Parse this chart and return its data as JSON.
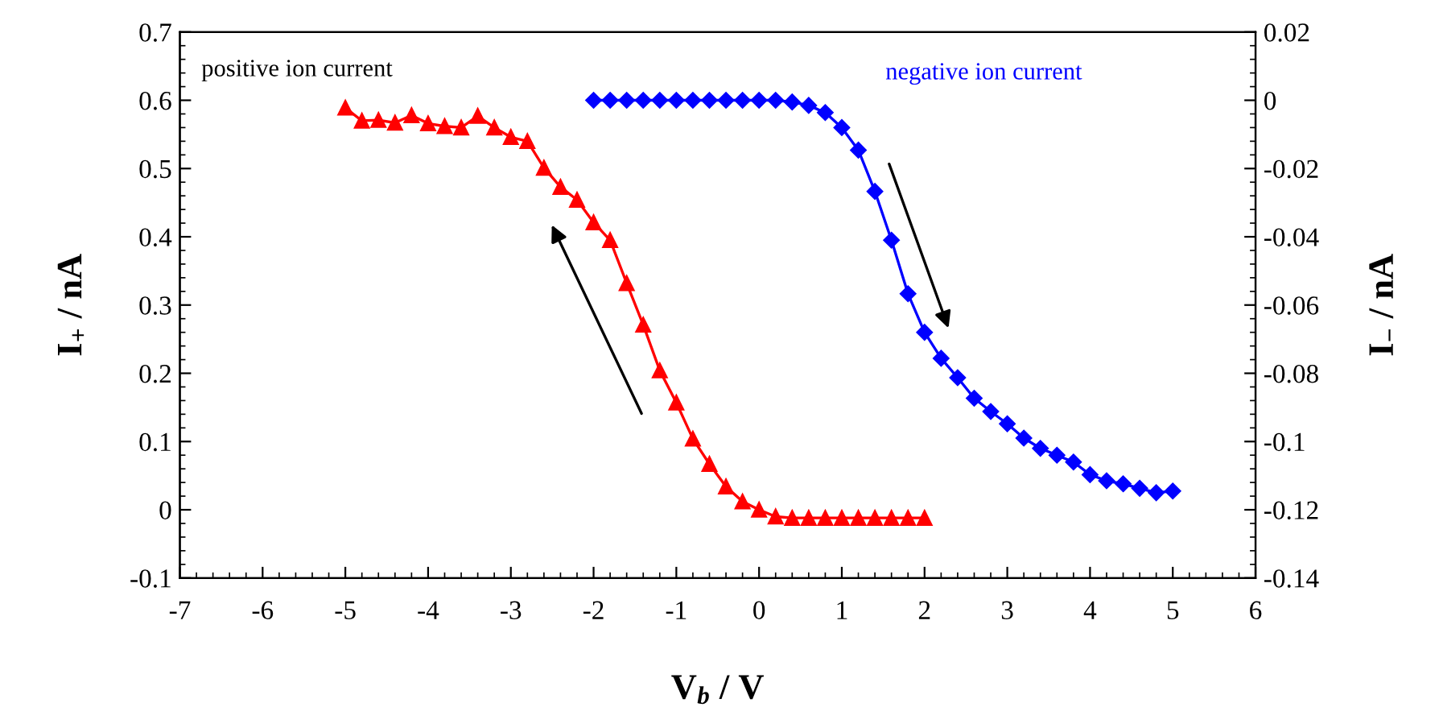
{
  "chart_data": {
    "type": "line",
    "xlabel": "V$_{b}$ / V",
    "ylabel": "I$_{+}$ / nA",
    "y2label": "I$_{−}$ / nA",
    "xlim": [
      -7,
      6
    ],
    "xticks": [
      -7,
      -6,
      -5,
      -4,
      -3,
      -2,
      -1,
      0,
      1,
      2,
      3,
      4,
      5,
      6
    ],
    "ylim": [
      -0.1,
      0.7
    ],
    "yticks": [
      -0.1,
      0,
      0.1,
      0.2,
      0.3,
      0.4,
      0.5,
      0.6,
      0.7
    ],
    "y2lim": [
      -0.14,
      0.02
    ],
    "y2ticks": [
      -0.14,
      -0.12,
      -0.1,
      -0.08,
      -0.06,
      -0.04,
      -0.02,
      0,
      0.02
    ],
    "grid": false,
    "legend": false,
    "line_style": "solid",
    "series": [
      {
        "name": "positive ion current",
        "color": "#ff0000",
        "marker": "triangle",
        "x": [
          -5.0,
          -4.8,
          -4.6,
          -4.4,
          -4.2,
          -4.0,
          -3.8,
          -3.6,
          -3.4,
          -3.2,
          -3.0,
          -2.8,
          -2.6,
          -2.4,
          -2.2,
          -2.0,
          -1.8,
          -1.6,
          -1.4,
          -1.2,
          -1.0,
          -0.8,
          -0.6,
          -0.4,
          -0.2,
          0.0,
          0.2,
          0.4,
          0.6,
          0.8,
          1.0,
          1.2,
          1.4,
          1.6,
          1.8,
          2.0
        ],
        "values": [
          0.589,
          0.57,
          0.571,
          0.567,
          0.578,
          0.566,
          0.562,
          0.56,
          0.577,
          0.56,
          0.546,
          0.54,
          0.501,
          0.473,
          0.454,
          0.421,
          0.395,
          0.332,
          0.271,
          0.204,
          0.157,
          0.104,
          0.067,
          0.034,
          0.012,
          0.0,
          -0.01,
          -0.012,
          -0.012,
          -0.012,
          -0.012,
          -0.012,
          -0.012,
          -0.012,
          -0.012,
          -0.012
        ]
      },
      {
        "name": "negative ion current",
        "color": "#0000ff",
        "marker": "diamond",
        "axis": "y2",
        "x": [
          -2.0,
          -1.8,
          -1.6,
          -1.4,
          -1.2,
          -1.0,
          -0.8,
          -0.6,
          -0.4,
          -0.2,
          0.0,
          0.2,
          0.4,
          0.6,
          0.8,
          1.0,
          1.2,
          1.4,
          1.6,
          1.8,
          2.0,
          2.2,
          2.4,
          2.6,
          2.8,
          3.0,
          3.2,
          3.4,
          3.6,
          3.8,
          4.0,
          4.2,
          4.4,
          4.6,
          4.8,
          5.0
        ],
        "values": [
          0.0,
          0.0,
          0.0,
          0.0,
          0.0,
          0.0,
          0.0,
          0.0,
          0.0,
          0.0,
          0.0,
          0.0,
          -0.0005,
          -0.0015,
          -0.0036,
          -0.008,
          -0.0146,
          -0.0267,
          -0.041,
          -0.0567,
          -0.068,
          -0.0756,
          -0.0813,
          -0.0873,
          -0.0912,
          -0.0948,
          -0.099,
          -0.102,
          -0.104,
          -0.106,
          -0.1097,
          -0.1115,
          -0.1124,
          -0.1137,
          -0.115,
          -0.1145
        ]
      }
    ]
  }
}
